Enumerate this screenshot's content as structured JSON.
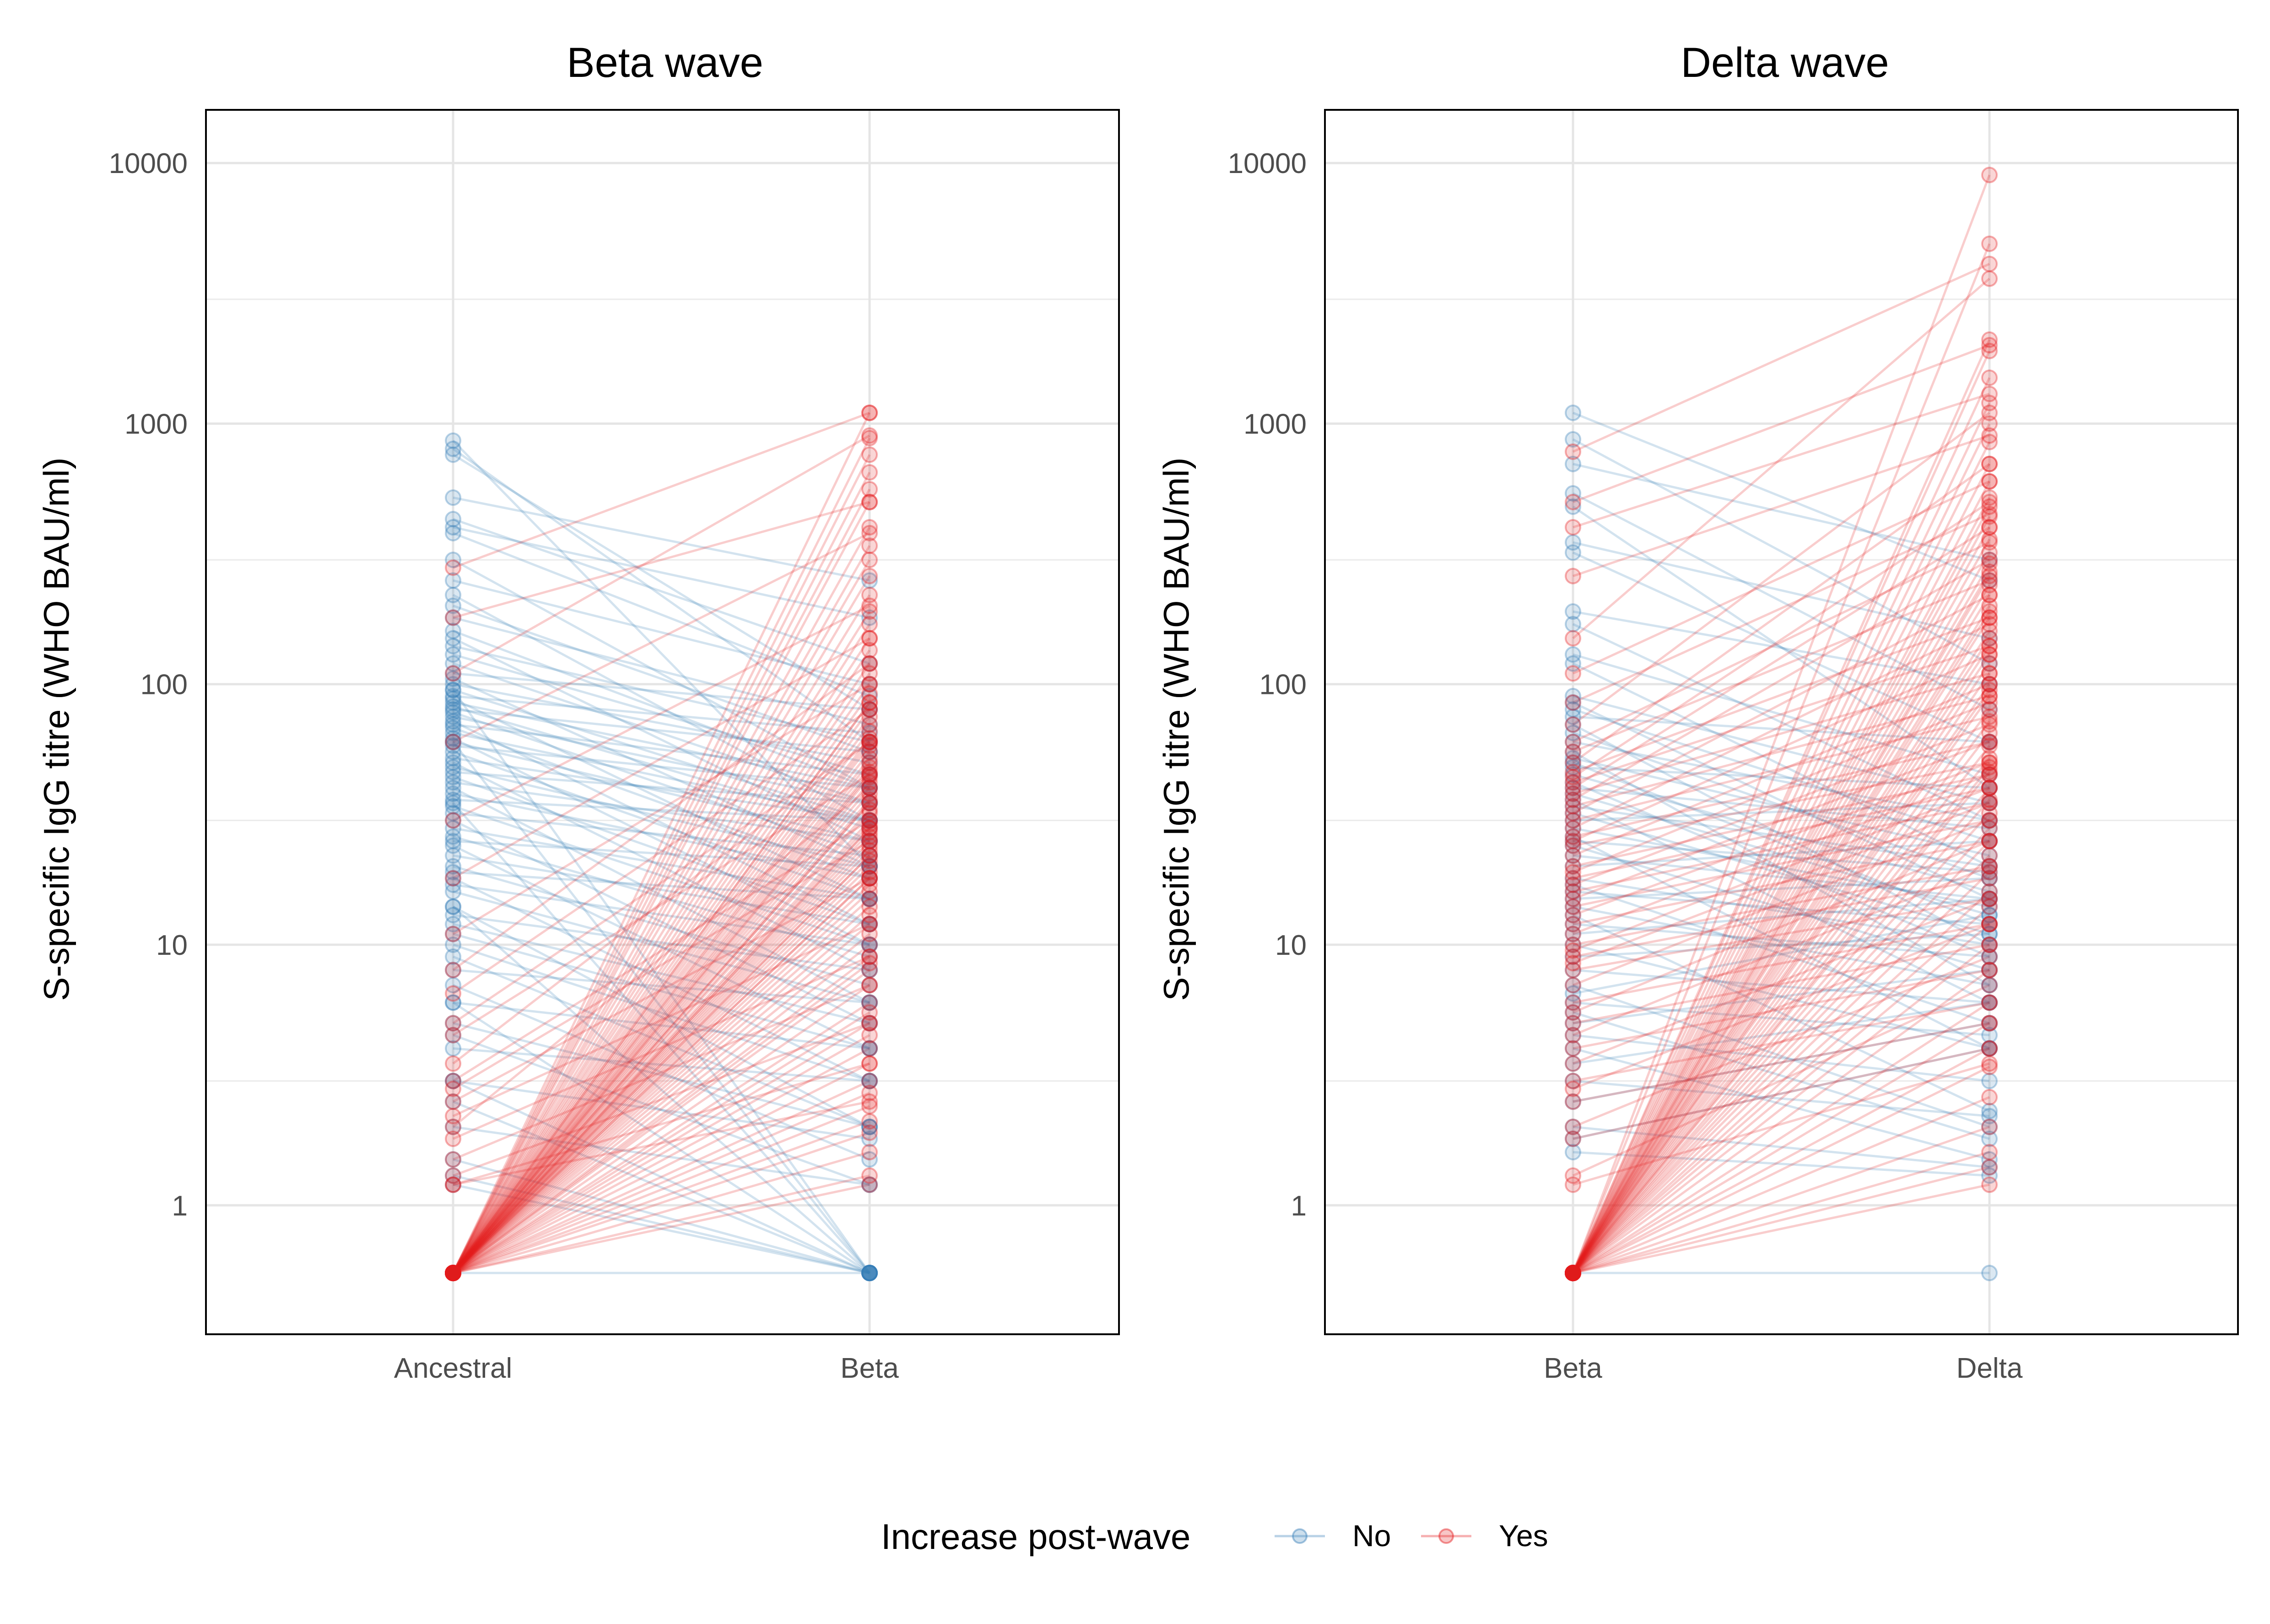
{
  "chart_data": [
    {
      "type": "line",
      "title": "Beta wave",
      "ylabel": "S-specific IgG titre (WHO BAU/ml)",
      "xlabel": "",
      "categories": [
        "Ancestral",
        "Beta"
      ],
      "y_scale": "log10",
      "ylim": [
        0.32,
        16000
      ],
      "y_ticks": [
        "1",
        "10",
        "100",
        "1000",
        "10000"
      ],
      "grid": true,
      "series_style": {
        "No": "#377eb8",
        "Yes": "#e41a1c"
      },
      "pairs_no": [
        [
          860,
          20
        ],
        [
          800,
          60
        ],
        [
          760,
          80
        ],
        [
          520,
          250
        ],
        [
          430,
          120
        ],
        [
          400,
          180
        ],
        [
          380,
          90
        ],
        [
          300,
          40
        ],
        [
          250,
          100
        ],
        [
          220,
          30
        ],
        [
          200,
          55
        ],
        [
          180,
          70
        ],
        [
          160,
          40
        ],
        [
          150,
          25
        ],
        [
          140,
          60
        ],
        [
          130,
          45
        ],
        [
          120,
          35
        ],
        [
          110,
          80
        ],
        [
          105,
          20
        ],
        [
          100,
          50
        ],
        [
          95,
          30
        ],
        [
          90,
          65
        ],
        [
          88,
          15
        ],
        [
          85,
          40
        ],
        [
          82,
          28
        ],
        [
          80,
          55
        ],
        [
          78,
          22
        ],
        [
          75,
          35
        ],
        [
          72,
          12
        ],
        [
          70,
          45
        ],
        [
          68,
          18
        ],
        [
          65,
          30
        ],
        [
          62,
          10
        ],
        [
          60,
          25
        ],
        [
          58,
          40
        ],
        [
          55,
          15
        ],
        [
          52,
          30
        ],
        [
          50,
          8
        ],
        [
          48,
          20
        ],
        [
          46,
          35
        ],
        [
          44,
          12
        ],
        [
          42,
          25
        ],
        [
          40,
          6
        ],
        [
          38,
          18
        ],
        [
          36,
          30
        ],
        [
          34,
          10
        ],
        [
          32,
          22
        ],
        [
          30,
          5
        ],
        [
          28,
          15
        ],
        [
          26,
          9
        ],
        [
          25,
          20
        ],
        [
          24,
          4
        ],
        [
          22,
          12
        ],
        [
          20,
          7
        ],
        [
          19,
          15
        ],
        [
          18,
          3
        ],
        [
          17,
          10
        ],
        [
          16,
          6
        ],
        [
          14,
          2
        ],
        [
          13,
          8
        ],
        [
          12,
          5
        ],
        [
          11,
          4
        ],
        [
          10,
          3
        ],
        [
          9,
          2
        ],
        [
          8,
          6
        ],
        [
          7,
          1.5
        ],
        [
          6,
          4
        ],
        [
          5,
          2
        ],
        [
          4.5,
          1.2
        ],
        [
          4,
          3
        ],
        [
          3,
          1.8
        ],
        [
          2.5,
          0.55
        ],
        [
          2,
          1.2
        ],
        [
          1.5,
          0.55
        ],
        [
          1.3,
          0.55
        ],
        [
          1.2,
          0.55
        ],
        [
          95,
          0.55
        ],
        [
          60,
          0.55
        ],
        [
          35,
          0.55
        ],
        [
          14,
          0.55
        ],
        [
          6,
          0.55
        ],
        [
          3,
          0.55
        ],
        [
          0.55,
          0.55
        ]
      ],
      "pairs_yes": [
        [
          280,
          1100
        ],
        [
          180,
          500
        ],
        [
          110,
          900
        ],
        [
          60,
          380
        ],
        [
          30,
          200
        ],
        [
          18,
          150
        ],
        [
          11,
          100
        ],
        [
          6.5,
          80
        ],
        [
          5,
          60
        ],
        [
          4.5,
          45
        ],
        [
          3,
          30
        ],
        [
          2.8,
          25
        ],
        [
          2.5,
          18
        ],
        [
          2.2,
          12
        ],
        [
          1.8,
          9
        ],
        [
          1.5,
          7
        ],
        [
          1.3,
          5
        ],
        [
          1.2,
          3.5
        ],
        [
          1.2,
          2.5
        ],
        [
          2,
          40
        ],
        [
          3.5,
          60
        ],
        [
          8,
          120
        ],
        [
          0.55,
          1100
        ],
        [
          0.55,
          880
        ],
        [
          0.55,
          760
        ],
        [
          0.55,
          650
        ],
        [
          0.55,
          560
        ],
        [
          0.55,
          500
        ],
        [
          0.55,
          400
        ],
        [
          0.55,
          340
        ],
        [
          0.55,
          300
        ],
        [
          0.55,
          260
        ],
        [
          0.55,
          220
        ],
        [
          0.55,
          190
        ],
        [
          0.55,
          170
        ],
        [
          0.55,
          150
        ],
        [
          0.55,
          135
        ],
        [
          0.55,
          120
        ],
        [
          0.55,
          110
        ],
        [
          0.55,
          100
        ],
        [
          0.55,
          92
        ],
        [
          0.55,
          85
        ],
        [
          0.55,
          80
        ],
        [
          0.55,
          75
        ],
        [
          0.55,
          70
        ],
        [
          0.55,
          66
        ],
        [
          0.55,
          62
        ],
        [
          0.55,
          58
        ],
        [
          0.55,
          55
        ],
        [
          0.55,
          52
        ],
        [
          0.55,
          50
        ],
        [
          0.55,
          48
        ],
        [
          0.55,
          46
        ],
        [
          0.55,
          44
        ],
        [
          0.55,
          42
        ],
        [
          0.55,
          40
        ],
        [
          0.55,
          38
        ],
        [
          0.55,
          36
        ],
        [
          0.55,
          35
        ],
        [
          0.55,
          33
        ],
        [
          0.55,
          32
        ],
        [
          0.55,
          30
        ],
        [
          0.55,
          29
        ],
        [
          0.55,
          28
        ],
        [
          0.55,
          27
        ],
        [
          0.55,
          26
        ],
        [
          0.55,
          25
        ],
        [
          0.55,
          24
        ],
        [
          0.55,
          23
        ],
        [
          0.55,
          22
        ],
        [
          0.55,
          21
        ],
        [
          0.55,
          20
        ],
        [
          0.55,
          19
        ],
        [
          0.55,
          18
        ],
        [
          0.55,
          17
        ],
        [
          0.55,
          16
        ],
        [
          0.55,
          15
        ],
        [
          0.55,
          14
        ],
        [
          0.55,
          13
        ],
        [
          0.55,
          12
        ],
        [
          0.55,
          11
        ],
        [
          0.55,
          10
        ],
        [
          0.55,
          9
        ],
        [
          0.55,
          8.5
        ],
        [
          0.55,
          8
        ],
        [
          0.55,
          7
        ],
        [
          0.55,
          6
        ],
        [
          0.55,
          5.5
        ],
        [
          0.55,
          5
        ],
        [
          0.55,
          4.5
        ],
        [
          0.55,
          4
        ],
        [
          0.55,
          3.5
        ],
        [
          0.55,
          3
        ],
        [
          0.55,
          2.7
        ],
        [
          0.55,
          2.4
        ],
        [
          0.55,
          2.1
        ],
        [
          0.55,
          1.9
        ],
        [
          0.55,
          1.6
        ],
        [
          0.55,
          1.3
        ],
        [
          0.55,
          1.2
        ],
        [
          0.55,
          85
        ],
        [
          0.55,
          60
        ],
        [
          0.55,
          45
        ],
        [
          0.55,
          35
        ],
        [
          0.55,
          28
        ],
        [
          0.55,
          22
        ],
        [
          0.55,
          18
        ]
      ]
    },
    {
      "type": "line",
      "title": "Delta wave",
      "ylabel": "S-specific IgG titre (WHO BAU/ml)",
      "xlabel": "",
      "categories": [
        "Beta",
        "Delta"
      ],
      "y_scale": "log10",
      "ylim": [
        0.32,
        16000
      ],
      "y_ticks": [
        "1",
        "10",
        "100",
        "1000",
        "10000"
      ],
      "grid": true,
      "series_style": {
        "No": "#377eb8",
        "Yes": "#e41a1c"
      },
      "pairs_no": [
        [
          1100,
          250
        ],
        [
          870,
          120
        ],
        [
          700,
          300
        ],
        [
          540,
          80
        ],
        [
          480,
          40
        ],
        [
          350,
          150
        ],
        [
          320,
          60
        ],
        [
          190,
          100
        ],
        [
          170,
          30
        ],
        [
          130,
          45
        ],
        [
          120,
          20
        ],
        [
          90,
          35
        ],
        [
          85,
          15
        ],
        [
          80,
          25
        ],
        [
          75,
          60
        ],
        [
          70,
          10
        ],
        [
          65,
          18
        ],
        [
          60,
          30
        ],
        [
          55,
          7
        ],
        [
          52,
          22
        ],
        [
          50,
          12
        ],
        [
          48,
          40
        ],
        [
          45,
          16
        ],
        [
          42,
          9
        ],
        [
          40,
          28
        ],
        [
          38,
          13
        ],
        [
          36,
          6
        ],
        [
          34,
          20
        ],
        [
          32,
          11
        ],
        [
          30,
          35
        ],
        [
          28,
          14
        ],
        [
          26,
          4
        ],
        [
          25,
          19
        ],
        [
          24,
          8
        ],
        [
          22,
          15
        ],
        [
          20,
          25
        ],
        [
          18,
          10
        ],
        [
          17,
          5
        ],
        [
          16,
          12
        ],
        [
          15,
          18
        ],
        [
          14,
          7
        ],
        [
          13,
          2.3
        ],
        [
          12,
          9
        ],
        [
          11,
          15
        ],
        [
          10,
          4
        ],
        [
          9,
          11
        ],
        [
          8,
          6
        ],
        [
          7,
          2
        ],
        [
          6.5,
          13
        ],
        [
          6,
          4.5
        ],
        [
          5.5,
          1.8
        ],
        [
          5,
          8
        ],
        [
          4.5,
          3
        ],
        [
          4,
          1.5
        ],
        [
          3.5,
          6
        ],
        [
          3,
          2.2
        ],
        [
          2.5,
          5
        ],
        [
          2,
          1.4
        ],
        [
          1.8,
          4
        ],
        [
          1.6,
          1.3
        ],
        [
          0.55,
          0.55
        ]
      ],
      "pairs_yes": [
        [
          780,
          4100
        ],
        [
          500,
          2000
        ],
        [
          400,
          1300
        ],
        [
          260,
          900
        ],
        [
          150,
          3600
        ],
        [
          110,
          600
        ],
        [
          85,
          450
        ],
        [
          70,
          1100
        ],
        [
          60,
          350
        ],
        [
          55,
          250
        ],
        [
          50,
          700
        ],
        [
          46,
          180
        ],
        [
          44,
          500
        ],
        [
          42,
          140
        ],
        [
          40,
          400
        ],
        [
          38,
          110
        ],
        [
          36,
          300
        ],
        [
          34,
          90
        ],
        [
          32,
          220
        ],
        [
          30,
          75
        ],
        [
          28,
          170
        ],
        [
          26,
          60
        ],
        [
          25,
          130
        ],
        [
          24,
          50
        ],
        [
          22,
          100
        ],
        [
          20,
          45
        ],
        [
          19,
          85
        ],
        [
          18,
          40
        ],
        [
          17,
          70
        ],
        [
          16,
          35
        ],
        [
          15,
          60
        ],
        [
          14,
          30
        ],
        [
          13,
          50
        ],
        [
          12,
          25
        ],
        [
          11,
          45
        ],
        [
          10,
          20
        ],
        [
          9.5,
          40
        ],
        [
          9,
          18
        ],
        [
          8.5,
          35
        ],
        [
          8,
          15
        ],
        [
          7,
          30
        ],
        [
          6,
          12
        ],
        [
          5.5,
          25
        ],
        [
          5,
          10
        ],
        [
          4.5,
          20
        ],
        [
          4,
          8
        ],
        [
          3.5,
          15
        ],
        [
          3,
          6
        ],
        [
          2.8,
          12
        ],
        [
          2.5,
          5
        ],
        [
          2,
          9
        ],
        [
          1.8,
          4
        ],
        [
          1.3,
          7
        ],
        [
          1.2,
          3.5
        ],
        [
          0.55,
          9000
        ],
        [
          0.55,
          4900
        ],
        [
          0.55,
          2100
        ],
        [
          0.55,
          1900
        ],
        [
          0.55,
          1500
        ],
        [
          0.55,
          1200
        ],
        [
          0.55,
          1000
        ],
        [
          0.55,
          850
        ],
        [
          0.55,
          700
        ],
        [
          0.55,
          600
        ],
        [
          0.55,
          520
        ],
        [
          0.55,
          480
        ],
        [
          0.55,
          440
        ],
        [
          0.55,
          400
        ],
        [
          0.55,
          360
        ],
        [
          0.55,
          320
        ],
        [
          0.55,
          290
        ],
        [
          0.55,
          260
        ],
        [
          0.55,
          240
        ],
        [
          0.55,
          220
        ],
        [
          0.55,
          200
        ],
        [
          0.55,
          180
        ],
        [
          0.55,
          160
        ],
        [
          0.55,
          150
        ],
        [
          0.55,
          140
        ],
        [
          0.55,
          130
        ],
        [
          0.55,
          120
        ],
        [
          0.55,
          110
        ],
        [
          0.55,
          100
        ],
        [
          0.55,
          90
        ],
        [
          0.55,
          80
        ],
        [
          0.55,
          72
        ],
        [
          0.55,
          65
        ],
        [
          0.55,
          58
        ],
        [
          0.55,
          52
        ],
        [
          0.55,
          46
        ],
        [
          0.55,
          40
        ],
        [
          0.55,
          36
        ],
        [
          0.55,
          32
        ],
        [
          0.55,
          28
        ],
        [
          0.55,
          25
        ],
        [
          0.55,
          22
        ],
        [
          0.55,
          19
        ],
        [
          0.55,
          16
        ],
        [
          0.55,
          14
        ],
        [
          0.55,
          12
        ],
        [
          0.55,
          10
        ],
        [
          0.55,
          8
        ],
        [
          0.55,
          6
        ],
        [
          0.55,
          5
        ],
        [
          0.55,
          4
        ],
        [
          0.55,
          3.4
        ],
        [
          0.55,
          2.6
        ],
        [
          0.55,
          2
        ],
        [
          0.55,
          1.6
        ],
        [
          0.55,
          1.4
        ],
        [
          0.55,
          1.2
        ],
        [
          0.55,
          270
        ],
        [
          0.55,
          190
        ],
        [
          0.55,
          95
        ],
        [
          0.55,
          48
        ]
      ]
    }
  ],
  "legend": {
    "title": "Increase post-wave",
    "items": [
      {
        "label": "No",
        "color": "#377eb8"
      },
      {
        "label": "Yes",
        "color": "#e41a1c"
      }
    ]
  }
}
